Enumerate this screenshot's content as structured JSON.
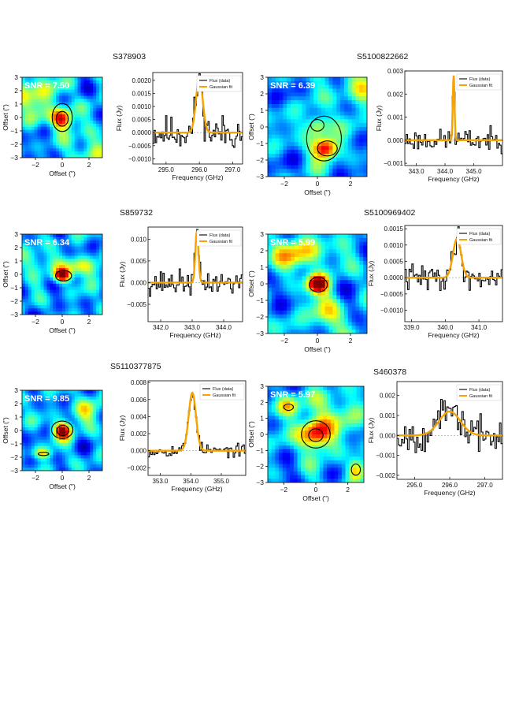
{
  "chart_data": [
    {
      "source": "S378903",
      "map": {
        "type": "heatmap",
        "snr_label": "SNR = 7.50",
        "xlabel": "Offset (\")",
        "ylabel": "Offset (\")",
        "xlim": [
          -3,
          3
        ],
        "ylim": [
          -3,
          3
        ],
        "xticks": [
          -2,
          0,
          2
        ],
        "yticks": [
          -3,
          -2,
          -1,
          0,
          1,
          2,
          3
        ],
        "blobs": [
          {
            "x": 0.0,
            "y": -0.1,
            "peak": 1.0,
            "sx": 0.55,
            "sy": 0.55
          },
          {
            "x": -2.2,
            "y": 1.8,
            "peak": 0.45,
            "sx": 1.2,
            "sy": 1.2
          },
          {
            "x": 2.2,
            "y": -2.3,
            "peak": 0.35,
            "sx": 1.0,
            "sy": 0.9
          }
        ],
        "contours": [
          {
            "x": 0.0,
            "y": 0.0,
            "rx": 0.75,
            "ry": 1.05
          },
          {
            "x": 0.0,
            "y": -0.1,
            "rx": 0.45,
            "ry": 0.55
          }
        ]
      },
      "spectrum": {
        "type": "line",
        "xlabel": "Frequency (GHz)",
        "ylabel": "Flux (Jy)",
        "xlim": [
          294.6,
          297.3
        ],
        "ylim": [
          -0.0012,
          0.0023
        ],
        "xticks": [
          295.0,
          296.0,
          297.0
        ],
        "xtick_labels": [
          "295.0",
          "296.0",
          "297.0"
        ],
        "yticks": [
          -0.001,
          -0.0005,
          0,
          0.0005,
          0.001,
          0.0015,
          0.002
        ],
        "ytick_labels": [
          "−0.0010",
          "−0.0005",
          "0.0000",
          "0.0005",
          "0.0010",
          "0.0015",
          "0.0020"
        ],
        "legend": [
          "Flux (data)",
          "Gaussian fit"
        ],
        "legend_loc": "top-right",
        "fit": {
          "amp": 0.0021,
          "center": 296.0,
          "sigma": 0.1
        },
        "noise": 0.00065,
        "seed": 11
      }
    },
    {
      "source": "S5100822662",
      "map": {
        "type": "heatmap",
        "snr_label": "SNR = 6.39",
        "xlabel": "Offset (\")",
        "ylabel": "Offset (\")",
        "xlim": [
          -3,
          3
        ],
        "ylim": [
          -3,
          3
        ],
        "xticks": [
          -2,
          0,
          2
        ],
        "yticks": [
          -3,
          -2,
          -1,
          0,
          1,
          2,
          3
        ],
        "blobs": [
          {
            "x": 0.5,
            "y": -1.3,
            "peak": 1.0,
            "sx": 0.55,
            "sy": 0.45
          },
          {
            "x": 0.0,
            "y": 0.1,
            "peak": 0.6,
            "sx": 0.5,
            "sy": 0.5
          },
          {
            "x": 2.5,
            "y": 2.5,
            "peak": 0.4,
            "sx": 0.9,
            "sy": 0.9
          }
        ],
        "contours": [
          {
            "x": 0.4,
            "y": -0.7,
            "rx": 1.05,
            "ry": 1.35
          },
          {
            "x": 0.6,
            "y": -1.3,
            "rx": 0.6,
            "ry": 0.45
          },
          {
            "x": 0.0,
            "y": 0.1,
            "rx": 0.4,
            "ry": 0.35
          }
        ]
      },
      "spectrum": {
        "type": "line",
        "xlabel": "Frequency (GHz)",
        "ylabel": "Flux (Jy)",
        "xlim": [
          342.6,
          346.0
        ],
        "ylim": [
          -0.0011,
          0.003
        ],
        "xticks": [
          343.0,
          344.0,
          345.0
        ],
        "xtick_labels": [
          "343.0",
          "344.0",
          "345.0"
        ],
        "yticks": [
          -0.001,
          0,
          0.001,
          0.002,
          0.003
        ],
        "ytick_labels": [
          "−0.001",
          "0.000",
          "0.001",
          "0.002",
          "0.003"
        ],
        "legend": [
          "Flux (data)",
          "Gaussian fit"
        ],
        "legend_loc": "top-right",
        "fit": {
          "amp": 0.0028,
          "center": 344.3,
          "sigma": 0.03
        },
        "noise": 0.00045,
        "seed": 23
      }
    },
    {
      "source": "S859732",
      "map": {
        "type": "heatmap",
        "snr_label": "SNR = 6.34",
        "xlabel": "Offset (\")",
        "ylabel": "Offset (\")",
        "xlim": [
          -3,
          3
        ],
        "ylim": [
          -3,
          3
        ],
        "xticks": [
          -2,
          0,
          2
        ],
        "yticks": [
          -3,
          -2,
          -1,
          0,
          1,
          2,
          3
        ],
        "blobs": [
          {
            "x": 0.0,
            "y": -0.1,
            "peak": 1.0,
            "sx": 0.45,
            "sy": 0.35
          },
          {
            "x": 1.5,
            "y": 0.5,
            "peak": 0.5,
            "sx": 1.0,
            "sy": 0.5
          },
          {
            "x": -2.0,
            "y": 1.0,
            "peak": 0.35,
            "sx": 0.8,
            "sy": 0.6
          }
        ],
        "contours": [
          {
            "x": 0.1,
            "y": -0.1,
            "rx": 0.6,
            "ry": 0.4
          }
        ]
      },
      "spectrum": {
        "type": "line",
        "xlabel": "Frequency (GHz)",
        "ylabel": "Flux (Jy)",
        "xlim": [
          341.6,
          344.6
        ],
        "ylim": [
          -0.009,
          0.0128
        ],
        "xticks": [
          342.0,
          343.0,
          344.0
        ],
        "xtick_labels": [
          "342.0",
          "343.0",
          "344.0"
        ],
        "yticks": [
          -0.005,
          0,
          0.005,
          0.01
        ],
        "ytick_labels": [
          "−0.005",
          "0.000",
          "0.005",
          "0.010"
        ],
        "legend": [
          "Flux (data)",
          "Gaussian fit"
        ],
        "legend_loc": "top-right",
        "fit": {
          "amp": 0.0118,
          "center": 343.15,
          "sigma": 0.05
        },
        "noise": 0.0028,
        "seed": 37
      }
    },
    {
      "source": "S5100969402",
      "map": {
        "type": "heatmap",
        "snr_label": "SNR = 5.99",
        "xlabel": "Offset (\")",
        "ylabel": "Offset (\")",
        "xlim": [
          -3,
          3
        ],
        "ylim": [
          -3,
          3
        ],
        "xticks": [
          -2,
          0,
          2
        ],
        "yticks": [
          -3,
          -2,
          -1,
          0,
          1,
          2,
          3
        ],
        "blobs": [
          {
            "x": 0.0,
            "y": 0.0,
            "peak": 1.0,
            "sx": 0.45,
            "sy": 0.4
          },
          {
            "x": -1.0,
            "y": 1.8,
            "peak": 0.55,
            "sx": 1.2,
            "sy": 0.7
          },
          {
            "x": 0.5,
            "y": -1.8,
            "peak": 0.45,
            "sx": 0.7,
            "sy": 0.9
          }
        ],
        "contours": [
          {
            "x": 0.05,
            "y": -0.05,
            "rx": 0.55,
            "ry": 0.45
          }
        ]
      },
      "spectrum": {
        "type": "line",
        "xlabel": "Frequency (GHz)",
        "ylabel": "Flux (Jy)",
        "xlim": [
          338.8,
          341.7
        ],
        "ylim": [
          -0.00135,
          0.0016
        ],
        "xticks": [
          339.0,
          340.0,
          341.0
        ],
        "xtick_labels": [
          "339.0",
          "340.0",
          "341.0"
        ],
        "yticks": [
          -0.001,
          -0.0005,
          0,
          0.0005,
          0.001,
          0.0015
        ],
        "ytick_labels": [
          "−0.0010",
          "−0.0005",
          "0.0000",
          "0.0005",
          "0.0010",
          "0.0015"
        ],
        "legend": [
          "Flux (data)",
          "Gaussian fit"
        ],
        "legend_loc": "top-right",
        "fit": {
          "amp": 0.0012,
          "center": 340.35,
          "sigma": 0.12
        },
        "noise": 0.0004,
        "seed": 41
      }
    },
    {
      "source": "S5110377875",
      "map": {
        "type": "heatmap",
        "snr_label": "SNR = 9.85",
        "xlabel": "Offset (\")",
        "ylabel": "Offset (\")",
        "xlim": [
          -3,
          3
        ],
        "ylim": [
          -3,
          3
        ],
        "xticks": [
          -2,
          0,
          2
        ],
        "yticks": [
          -3,
          -2,
          -1,
          0,
          1,
          2,
          3
        ],
        "blobs": [
          {
            "x": 0.0,
            "y": 0.0,
            "peak": 1.0,
            "sx": 0.5,
            "sy": 0.45
          },
          {
            "x": -1.5,
            "y": -1.7,
            "peak": 0.5,
            "sx": 0.5,
            "sy": 0.3
          },
          {
            "x": 2.0,
            "y": 1.5,
            "peak": 0.3,
            "sx": 0.9,
            "sy": 0.9
          }
        ],
        "contours": [
          {
            "x": 0.0,
            "y": 0.05,
            "rx": 0.8,
            "ry": 0.65
          },
          {
            "x": 0.05,
            "y": 0.0,
            "rx": 0.45,
            "ry": 0.38
          },
          {
            "x": -1.4,
            "y": -1.75,
            "rx": 0.4,
            "ry": 0.12
          }
        ]
      },
      "spectrum": {
        "type": "line",
        "xlabel": "Frequency (GHz)",
        "ylabel": "Flux (Jy)",
        "xlim": [
          352.6,
          355.8
        ],
        "ylim": [
          -0.0029,
          0.0082
        ],
        "xticks": [
          353.0,
          354.0,
          355.0
        ],
        "xtick_labels": [
          "353.0",
          "354.0",
          "355.0"
        ],
        "yticks": [
          -0.002,
          0,
          0.002,
          0.004,
          0.006,
          0.008
        ],
        "ytick_labels": [
          "−0.002",
          "0.000",
          "0.002",
          "0.004",
          "0.006",
          "0.008"
        ],
        "legend": [
          "Flux (data)",
          "Gaussian fit"
        ],
        "legend_loc": "top-right",
        "fit": {
          "amp": 0.0068,
          "center": 354.05,
          "sigma": 0.12
        },
        "noise": 0.0007,
        "seed": 53
      }
    },
    {
      "source": "S460378",
      "map": {
        "type": "heatmap",
        "snr_label": "SNR = 5.97",
        "xlabel": "Offset (\")",
        "ylabel": "Offset (\")",
        "xlim": [
          -3,
          3
        ],
        "ylim": [
          -3,
          3
        ],
        "xticks": [
          -2,
          0,
          2
        ],
        "yticks": [
          -3,
          -2,
          -1,
          0,
          1,
          2,
          3
        ],
        "blobs": [
          {
            "x": 0.0,
            "y": 0.0,
            "peak": 1.0,
            "sx": 0.7,
            "sy": 0.7
          },
          {
            "x": 2.5,
            "y": -2.2,
            "peak": 0.7,
            "sx": 0.4,
            "sy": 0.5
          },
          {
            "x": -1.8,
            "y": 1.8,
            "peak": 0.55,
            "sx": 0.6,
            "sy": 0.5
          },
          {
            "x": 1.5,
            "y": 1.5,
            "peak": 0.35,
            "sx": 1.0,
            "sy": 0.8
          }
        ],
        "contours": [
          {
            "x": 0.0,
            "y": 0.0,
            "rx": 0.9,
            "ry": 0.85
          },
          {
            "x": 0.0,
            "y": -0.05,
            "rx": 0.45,
            "ry": 0.4
          },
          {
            "x": 2.5,
            "y": -2.2,
            "rx": 0.28,
            "ry": 0.35
          },
          {
            "x": -1.7,
            "y": 1.7,
            "rx": 0.3,
            "ry": 0.2
          }
        ]
      },
      "spectrum": {
        "type": "line",
        "xlabel": "Frequency (GHz)",
        "ylabel": "Flux (Jy)",
        "xlim": [
          294.5,
          297.5
        ],
        "ylim": [
          -0.0022,
          0.0027
        ],
        "xticks": [
          295.0,
          296.0,
          297.0
        ],
        "xtick_labels": [
          "295.0",
          "296.0",
          "297.0"
        ],
        "yticks": [
          -0.002,
          -0.001,
          0,
          0.001,
          0.002
        ],
        "ytick_labels": [
          "−0.002",
          "−0.001",
          "0.000",
          "0.001",
          "0.002"
        ],
        "legend": [
          "Flux (data)",
          "Gaussian fit"
        ],
        "legend_loc": "top-right",
        "fit": {
          "amp": 0.0012,
          "center": 296.0,
          "sigma": 0.3
        },
        "noise": 0.0008,
        "seed": 67
      }
    }
  ]
}
